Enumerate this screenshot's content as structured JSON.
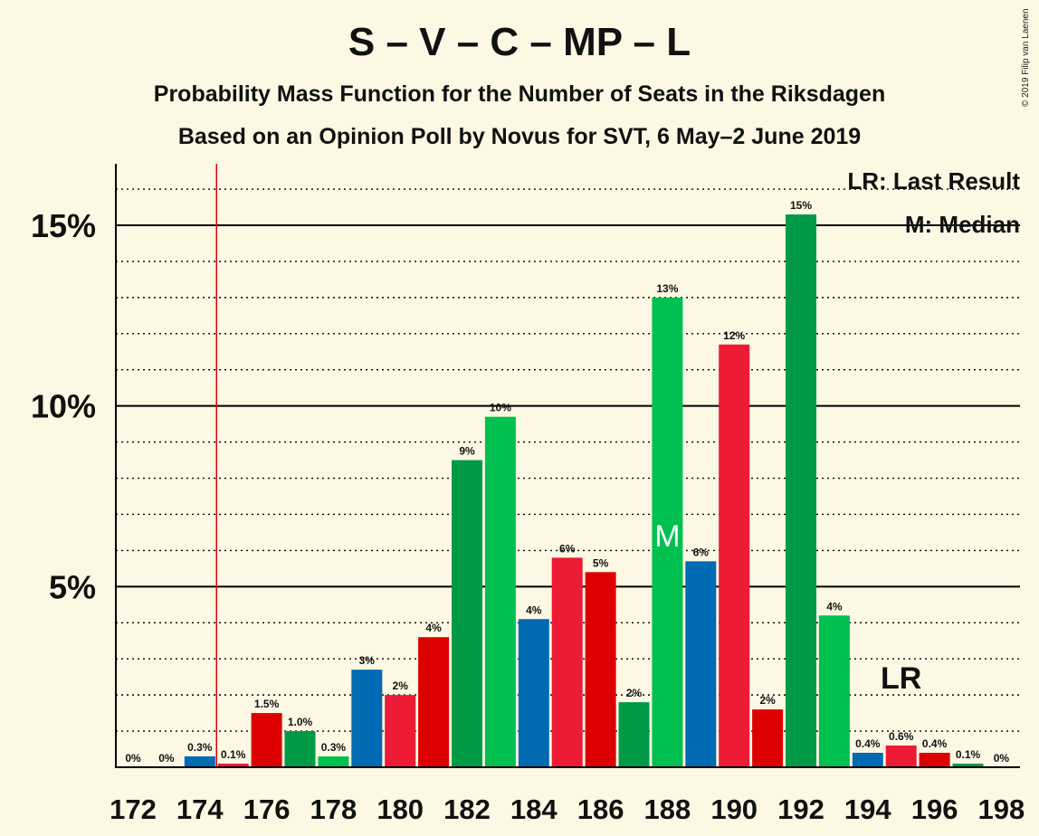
{
  "title": "S – V – C – MP – L",
  "subtitle": "Probability Mass Function for the Number of Seats in the Riksdagen",
  "subtitle2": "Based on an Opinion Poll by Novus for SVT, 6 May–2 June 2019",
  "copyright": "© 2019 Filip van Laenen",
  "legend": {
    "last_result": "LR: Last Result",
    "median": "M: Median"
  },
  "markers": {
    "last_result_label": "LR",
    "median_label": "M"
  },
  "colors": {
    "background": "#fdf8e4",
    "S_red": "#e8101a",
    "V_darkred": "#dd0000",
    "C_green": "#009a46",
    "MP_green": "#00c050",
    "L_blue": "#006ab3",
    "S_pink": "#ed1b34",
    "lr_line": "#dd0000"
  },
  "chart_data": {
    "type": "bar",
    "x": [
      172,
      173,
      174,
      175,
      176,
      177,
      178,
      179,
      180,
      181,
      182,
      183,
      184,
      185,
      186,
      187,
      188,
      189,
      190,
      191,
      192,
      193,
      194,
      195,
      196,
      197,
      198
    ],
    "values": [
      0,
      0,
      0.3,
      0.1,
      1.5,
      1.0,
      0.3,
      2.7,
      2.0,
      3.6,
      8.5,
      9.7,
      4.1,
      5.8,
      5.4,
      1.8,
      13.0,
      5.7,
      11.7,
      1.6,
      15.3,
      4.2,
      0.4,
      0.6,
      0.4,
      0.1,
      0
    ],
    "data_labels": [
      "0%",
      "0%",
      "0.3%",
      "0.1%",
      "1.5%",
      "1.0%",
      "0.3%",
      "3%",
      "2%",
      "4%",
      "9%",
      "10%",
      "4%",
      "6%",
      "5%",
      "2%",
      "13%",
      "6%",
      "12%",
      "2%",
      "15%",
      "4%",
      "0.4%",
      "0.6%",
      "0.4%",
      "0.1%",
      "0%"
    ],
    "bar_colors": [
      "#006ab3",
      "#006ab3",
      "#006ab3",
      "#ed1b34",
      "#dd0000",
      "#009a46",
      "#00c050",
      "#006ab3",
      "#ed1b34",
      "#dd0000",
      "#009a46",
      "#00c050",
      "#006ab3",
      "#ed1b34",
      "#dd0000",
      "#009a46",
      "#00c050",
      "#006ab3",
      "#ed1b34",
      "#dd0000",
      "#009a46",
      "#00c050",
      "#006ab3",
      "#ed1b34",
      "#dd0000",
      "#009a46",
      "#00c050"
    ],
    "x_tick_labels": [
      "172",
      "174",
      "176",
      "178",
      "180",
      "182",
      "184",
      "186",
      "188",
      "190",
      "192",
      "194",
      "196",
      "198"
    ],
    "y_tick_labels": [
      "5%",
      "10%",
      "15%"
    ],
    "y_ticks": [
      5,
      10,
      15
    ],
    "ylim": [
      0,
      16.7
    ],
    "last_result_seat": 174.5,
    "last_result_label_seat": 195,
    "median_seat": 188,
    "grid": "dotted every 1%, solid every 5%"
  }
}
